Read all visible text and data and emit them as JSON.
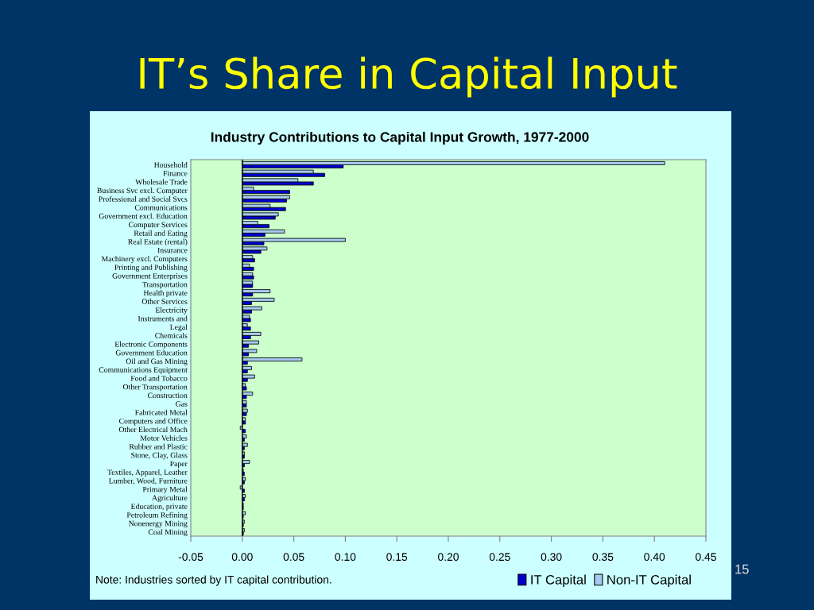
{
  "chart_data": {
    "type": "bar",
    "orientation": "horizontal",
    "title": "IT’s Share in Capital Input",
    "subtitle": "Industry Contributions to Capital Input Growth, 1977-2000",
    "categories": [
      "Household",
      "Finance",
      "Wholesale Trade",
      "Business Svc excl. Computer",
      "Professional and Social Svcs",
      "Communications",
      "Government excl. Education",
      "Computer Services",
      "Retail and Eating",
      "Real Estate (rental)",
      "Insurance",
      "Machinery excl. Computers",
      "Printing and Publishing",
      "Government Enterprises",
      "Transportation",
      "Health private",
      "Other Services",
      "Electricity",
      "Instruments and",
      "Legal",
      "Chemicals",
      "Electronic Components",
      "Government Education",
      "Oil and Gas Mining",
      "Communications Equipment",
      "Food and Tobacco",
      "Other Transportation",
      "Construction",
      "Gas",
      "Fabricated Metal",
      "Computers and Office",
      "Other Electrical Mach",
      "Motor Vehicles",
      "Rubber and Plastic",
      "Stone, Clay, Glass",
      "Paper",
      "Textiles, Apparel, Leather",
      "Lumber, Wood, Furniture",
      "Primary Metal",
      "Agriculture",
      "Education, private",
      "Petroleum Refining",
      "Nonenergy Mining",
      "Coal Mining"
    ],
    "series": [
      {
        "name": "IT Capital",
        "color": "#0000cc",
        "values": [
          0.098,
          0.08,
          0.069,
          0.046,
          0.043,
          0.042,
          0.032,
          0.026,
          0.022,
          0.021,
          0.018,
          0.012,
          0.011,
          0.011,
          0.01,
          0.01,
          0.009,
          0.009,
          0.008,
          0.008,
          0.008,
          0.006,
          0.006,
          0.005,
          0.005,
          0.005,
          0.004,
          0.004,
          0.004,
          0.004,
          0.003,
          0.003,
          0.002,
          0.002,
          0.002,
          0.002,
          0.002,
          0.002,
          0.002,
          0.002,
          0.001,
          0.001,
          0.001,
          0.001
        ]
      },
      {
        "name": "Non-IT Capital",
        "color": "#a6caf0",
        "values": [
          0.41,
          0.069,
          0.054,
          0.011,
          0.046,
          0.027,
          0.035,
          0.015,
          0.041,
          0.1,
          0.024,
          0.01,
          0.007,
          0.01,
          0.01,
          0.027,
          0.031,
          0.019,
          0.007,
          0.005,
          0.018,
          0.016,
          0.014,
          0.058,
          0.009,
          0.012,
          0.003,
          0.01,
          0.004,
          0.005,
          0.003,
          -0.002,
          0.004,
          0.005,
          0.002,
          0.007,
          0.001,
          0.003,
          -0.002,
          0.003,
          0.001,
          0.003,
          0.002,
          0.002
        ]
      }
    ],
    "xlim": [
      -0.05,
      0.45
    ],
    "xticks": [
      -0.05,
      {
        "value": 0,
        "label": "0.00"
      },
      0.05,
      {
        "value": 0.1,
        "label": "0.10"
      },
      0.15,
      {
        "value": 0.2,
        "label": "0.20"
      },
      0.25,
      {
        "value": 0.3,
        "label": "0.30"
      },
      0.35,
      {
        "value": 0.4,
        "label": "0.40"
      },
      0.45
    ],
    "legend": "bottom right",
    "annotations": [
      "Note: Industries sorted by IT capital contribution.",
      "15"
    ]
  }
}
